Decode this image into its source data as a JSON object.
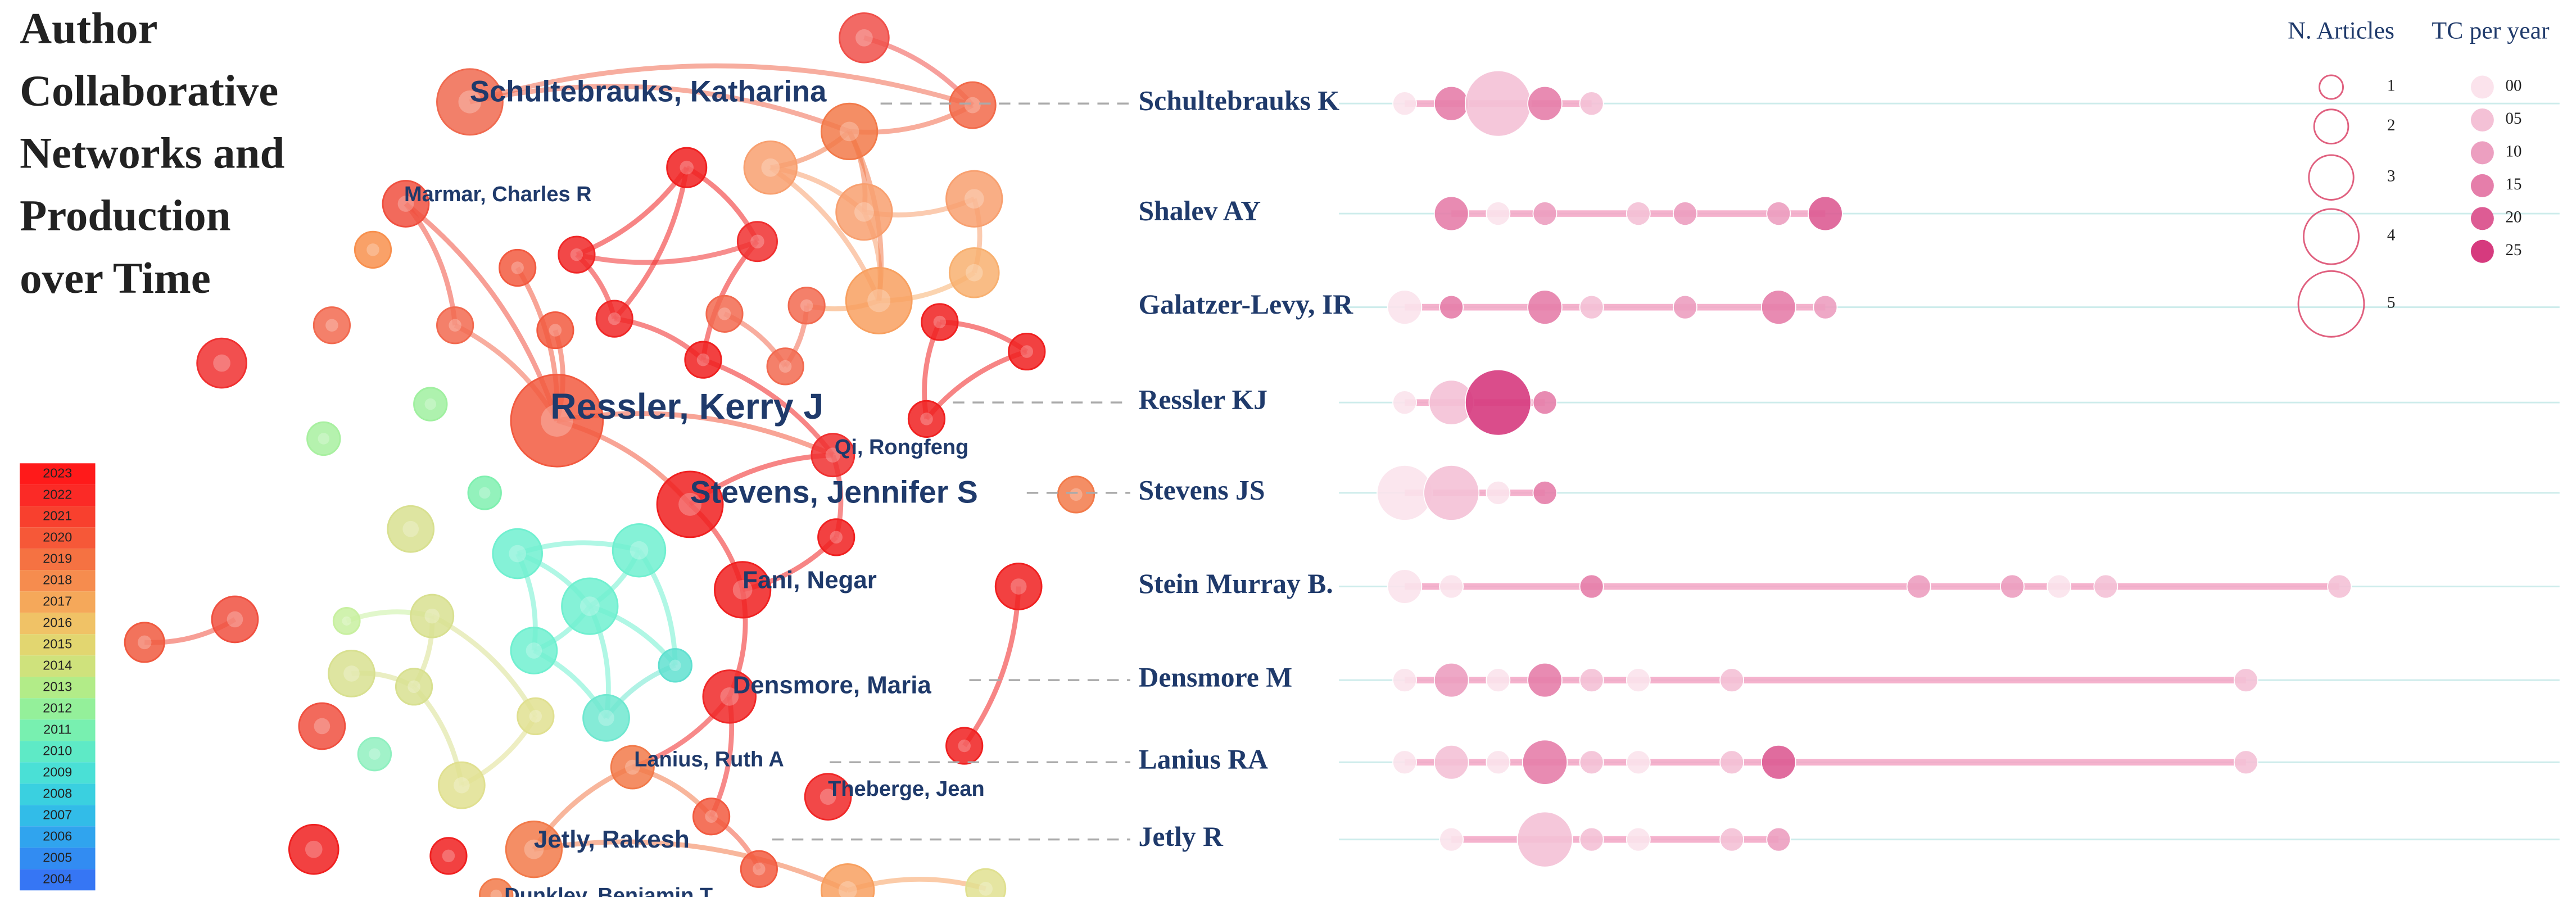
{
  "title": [
    "Author",
    "Collaborative",
    "Networks and",
    "Production",
    "over Time"
  ],
  "colorbar": {
    "years": [
      2023,
      2022,
      2021,
      2020,
      2019,
      2018,
      2017,
      2016,
      2015,
      2014,
      2013,
      2012,
      2011,
      2010,
      2009,
      2008,
      2007,
      2006,
      2005,
      2004
    ],
    "colors": [
      "#ff1a1a",
      "#fb2a26",
      "#f8402e",
      "#f65838",
      "#f57242",
      "#f68c4e",
      "#f5a85a",
      "#f0c266",
      "#e2d670",
      "#cfe27c",
      "#b2ec88",
      "#94f09a",
      "#78f0b0",
      "#5eeac6",
      "#4ae0d6",
      "#3ad0e0",
      "#32bce8",
      "#30a4ee",
      "#328cf2",
      "#3676f4"
    ]
  },
  "network": {
    "labels": [
      "Schultebrauks, Katharina",
      "Marmar, Charles R",
      "Ressler, Kerry J",
      "Qi, Rongfeng",
      "Stevens, Jennifer S",
      "Fani, Negar",
      "Densmore, Maria",
      "Lanius, Ruth A",
      "Theberge, Jean",
      "Jetly, Rakesh",
      "Dunkley, Benjamin T"
    ]
  },
  "chart_data": {
    "type": "bubble",
    "legend": {
      "size_title": "N. Articles",
      "sizes": [
        1,
        2,
        3,
        4,
        5
      ],
      "color_title": "TC per year",
      "colors": [
        {
          "value": 0,
          "label": "00"
        },
        {
          "value": 5,
          "label": "05"
        },
        {
          "value": 10,
          "label": "10"
        },
        {
          "value": 15,
          "label": "15"
        },
        {
          "value": 20,
          "label": "20"
        },
        {
          "value": 25,
          "label": "25"
        }
      ]
    },
    "color_scale": [
      "#fbe3ec",
      "#d63a7e"
    ],
    "series": [
      {
        "name": "Schultebrauks K",
        "x": [
          0,
          1,
          2,
          3,
          4
        ],
        "articles": [
          1,
          2,
          5,
          2,
          1
        ],
        "tc": [
          0,
          15,
          5,
          15,
          5
        ]
      },
      {
        "name": "Shalev AY",
        "x": [
          1,
          2,
          3,
          5,
          6,
          8,
          9
        ],
        "articles": [
          2,
          1,
          1,
          1,
          1,
          1,
          2
        ],
        "tc": [
          15,
          0,
          10,
          5,
          10,
          10,
          20
        ]
      },
      {
        "name": "Galatzer-Levy, IR",
        "x": [
          0,
          1,
          3,
          4,
          6,
          8,
          9
        ],
        "articles": [
          2,
          1,
          2,
          1,
          1,
          2,
          1
        ],
        "tc": [
          0,
          15,
          15,
          5,
          10,
          15,
          10
        ]
      },
      {
        "name": "Ressler KJ",
        "x": [
          0,
          1,
          2,
          3
        ],
        "articles": [
          1,
          3,
          5,
          1
        ],
        "tc": [
          0,
          5,
          25,
          15
        ]
      },
      {
        "name": "Stevens JS",
        "x": [
          0,
          1,
          2,
          3
        ],
        "articles": [
          4,
          4,
          1,
          1
        ],
        "tc": [
          0,
          5,
          0,
          15
        ]
      },
      {
        "name": "Stein Murray B.",
        "x": [
          0,
          1,
          4,
          11,
          13,
          14,
          15,
          20
        ],
        "articles": [
          2,
          1,
          1,
          1,
          1,
          1,
          1,
          1
        ],
        "tc": [
          0,
          0,
          15,
          10,
          10,
          0,
          5,
          5
        ]
      },
      {
        "name": "Densmore M",
        "x": [
          0,
          1,
          2,
          3,
          4,
          5,
          7,
          18
        ],
        "articles": [
          1,
          2,
          1,
          2,
          1,
          1,
          1,
          1
        ],
        "tc": [
          0,
          10,
          0,
          15,
          5,
          0,
          5,
          5
        ]
      },
      {
        "name": "Lanius RA",
        "x": [
          0,
          1,
          2,
          3,
          4,
          5,
          7,
          8,
          18
        ],
        "articles": [
          1,
          2,
          1,
          3,
          1,
          1,
          1,
          2,
          1
        ],
        "tc": [
          0,
          5,
          0,
          15,
          5,
          0,
          5,
          20,
          5
        ]
      },
      {
        "name": "Jetly R",
        "x": [
          1,
          3,
          4,
          5,
          7,
          8
        ],
        "articles": [
          1,
          4,
          1,
          1,
          1,
          1
        ],
        "tc": [
          0,
          5,
          5,
          0,
          5,
          10
        ]
      }
    ]
  }
}
